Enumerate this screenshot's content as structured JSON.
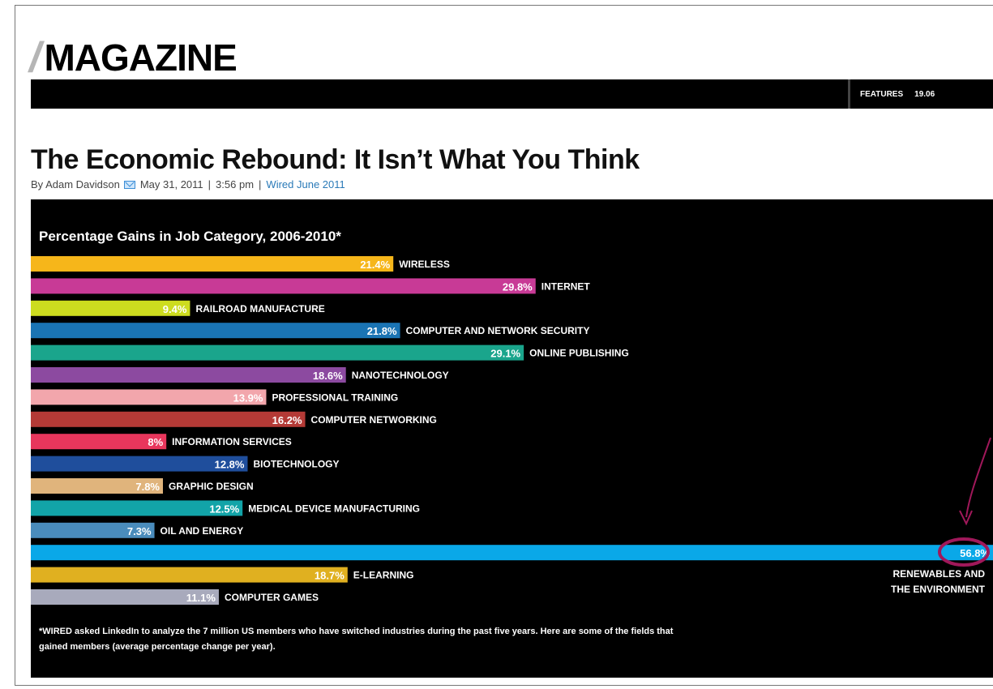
{
  "masthead": {
    "slash": "/",
    "word": "MAGAZINE"
  },
  "section": {
    "label": "FEATURES",
    "issue": "19.06"
  },
  "article": {
    "title": "The Economic Rebound: It Isn’t What You Think",
    "author": "By Adam Davidson",
    "date": "May 31, 2011",
    "sep1": "|",
    "time": "3:56 pm",
    "sep2": "|",
    "issue_link": "Wired June 2011"
  },
  "chart_data": {
    "type": "bar",
    "orientation": "horizontal",
    "title": "Percentage Gains in Job Category, 2006-2010*",
    "xlabel": "",
    "ylabel": "",
    "xlim": [
      0,
      56.8
    ],
    "grid": false,
    "categories": [
      "WIRELESS",
      "INTERNET",
      "RAILROAD MANUFACTURE",
      "COMPUTER AND NETWORK SECURITY",
      "ONLINE PUBLISHING",
      "NANOTECHNOLOGY",
      "PROFESSIONAL TRAINING",
      "COMPUTER NETWORKING",
      "INFORMATION SERVICES",
      "BIOTECHNOLOGY",
      "GRAPHIC DESIGN",
      "MEDICAL DEVICE MANUFACTURING",
      "OIL AND ENERGY",
      "RENEWABLES AND THE ENVIRONMENT",
      "E-LEARNING",
      "COMPUTER GAMES"
    ],
    "values": [
      21.4,
      29.8,
      9.4,
      21.8,
      29.1,
      18.6,
      13.9,
      16.2,
      8,
      12.8,
      7.8,
      12.5,
      7.3,
      56.8,
      18.7,
      11.1
    ],
    "value_labels": [
      "21.4%",
      "29.8%",
      "9.4%",
      "21.8%",
      "29.1%",
      "18.6%",
      "13.9%",
      "16.2%",
      "8%",
      "12.8%",
      "7.8%",
      "12.5%",
      "7.3%",
      "56.8%",
      "18.7%",
      "11.1%"
    ],
    "colors": [
      "#f6b61a",
      "#c83a96",
      "#cddc1f",
      "#1a74b4",
      "#1aa58c",
      "#8c4aa0",
      "#f2a6ac",
      "#b43a36",
      "#e8365c",
      "#1f4e9c",
      "#e0b47c",
      "#12a4a8",
      "#4a8cbc",
      "#0aa8e8",
      "#e0b020",
      "#a8aabc"
    ],
    "highlight": {
      "category": "RENEWABLES AND THE ENVIRONMENT",
      "label_lines": [
        "RENEWABLES AND",
        "THE ENVIRONMENT"
      ],
      "circle_color": "#a0185a"
    },
    "footnote": "*WIRED asked LinkedIn to analyze the 7 million US members who have switched industries during the past five years. Here are some of the fields that gained members (average percentage change per year)."
  }
}
